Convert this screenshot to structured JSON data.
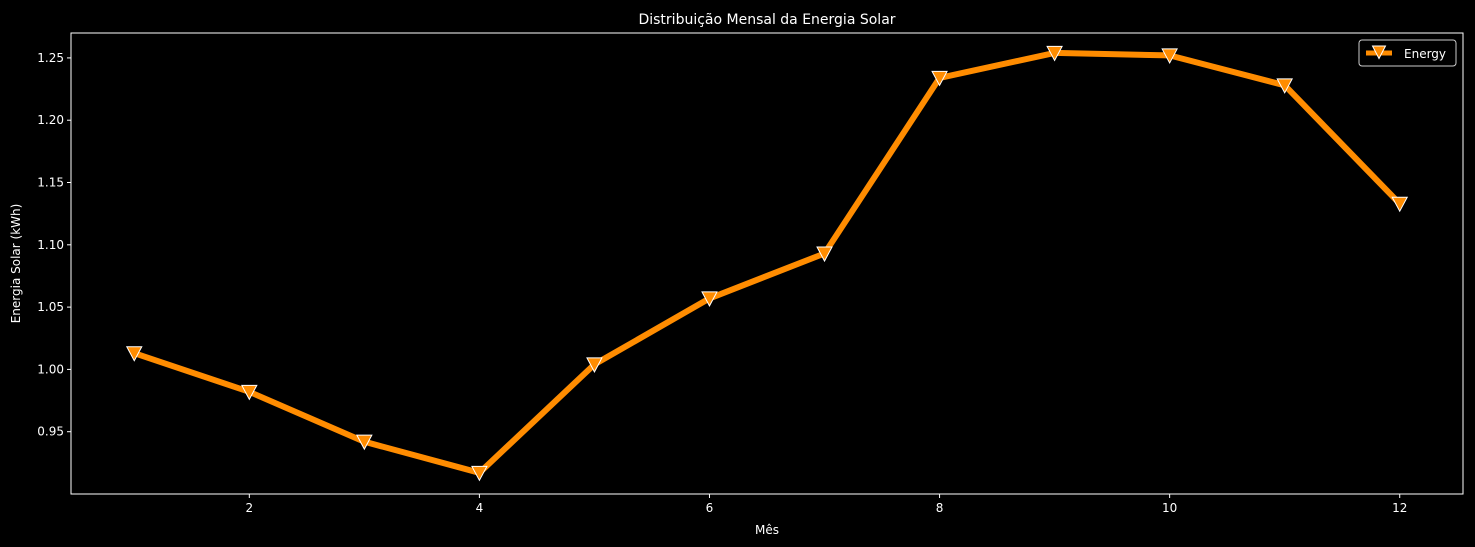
{
  "chart_data": {
    "type": "line",
    "title": "Distribuição Mensal da Energia Solar",
    "xlabel": "Mês",
    "ylabel": "Energia Solar (kWh)",
    "x": [
      1,
      2,
      3,
      4,
      5,
      6,
      7,
      8,
      9,
      10,
      11,
      12
    ],
    "series": [
      {
        "name": "Energy",
        "values": [
          1.013,
          0.982,
          0.942,
          0.917,
          1.004,
          1.057,
          1.093,
          1.234,
          1.254,
          1.252,
          1.228,
          1.133
        ],
        "color": "#ff8c00",
        "marker": "triangle-down"
      }
    ],
    "xlim": [
      0.45,
      12.55
    ],
    "ylim": [
      0.9,
      1.27
    ],
    "xticks": [
      2,
      4,
      6,
      8,
      10,
      12
    ],
    "xtick_labels": [
      "2",
      "4",
      "6",
      "8",
      "10",
      "12"
    ],
    "yticks": [
      0.95,
      1.0,
      1.05,
      1.1,
      1.15,
      1.2,
      1.25
    ],
    "ytick_labels": [
      "0.95",
      "1.00",
      "1.05",
      "1.10",
      "1.15",
      "1.20",
      "1.25"
    ],
    "grid": false,
    "legend_position": "top-right",
    "background": "#000000",
    "axis_color": "#ffffff"
  }
}
